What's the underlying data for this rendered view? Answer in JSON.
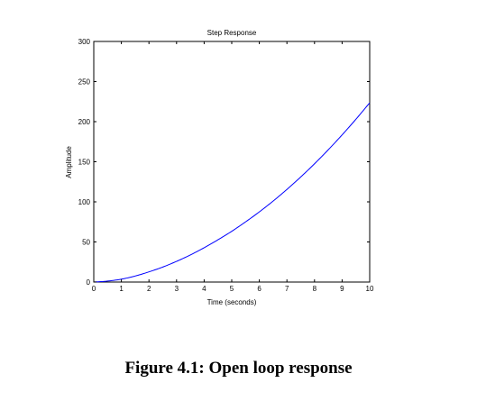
{
  "chart_data": {
    "type": "line",
    "title": "Step Response",
    "xlabel": "Time (seconds)",
    "ylabel": "Amplitude",
    "xlim": [
      0,
      10
    ],
    "ylim": [
      0,
      300
    ],
    "xticks": [
      0,
      1,
      2,
      3,
      4,
      5,
      6,
      7,
      8,
      9,
      10
    ],
    "yticks": [
      0,
      50,
      100,
      150,
      200,
      250,
      300
    ],
    "grid": false,
    "series": [
      {
        "color": "#0000ff",
        "x": [
          0,
          0.5,
          1,
          1.5,
          2,
          2.5,
          3,
          3.5,
          4,
          4.5,
          5,
          5.5,
          6,
          6.5,
          7,
          7.5,
          8,
          8.5,
          9,
          9.5,
          10
        ],
        "y": [
          0,
          1.2,
          3.6,
          7.5,
          12.7,
          18.7,
          25.8,
          33.8,
          42.8,
          52.7,
          63.3,
          75,
          87.5,
          101,
          115.5,
          131,
          147.5,
          165,
          183.5,
          203,
          223.5
        ]
      }
    ]
  },
  "caption": "Figure 4.1: Open loop response"
}
